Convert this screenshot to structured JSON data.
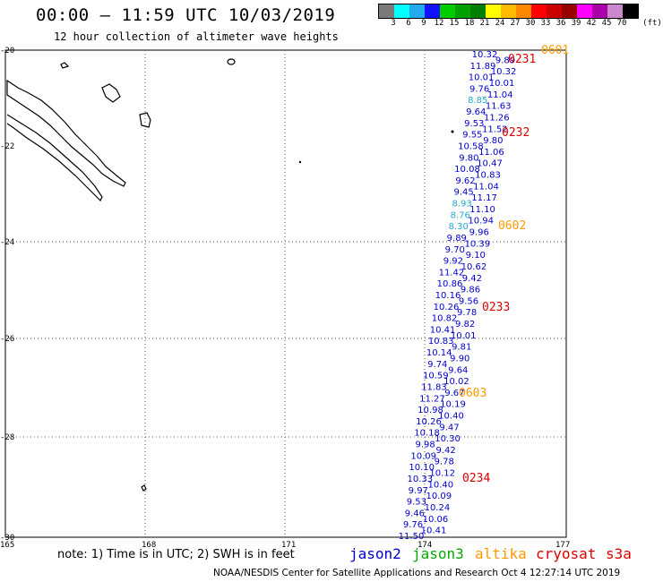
{
  "header": {
    "title": "00:00 – 11:59 UTC 10/03/2019",
    "subtitle": "12 hour collection of altimeter wave heights"
  },
  "legend": {
    "unit": "(ft)",
    "colors": [
      "#7a7a7a",
      "#00ffff",
      "#22aaee",
      "#1111ff",
      "#00cc00",
      "#00a000",
      "#008000",
      "#ffff00",
      "#ffbb00",
      "#ff8800",
      "#ff0000",
      "#cc0000",
      "#990000",
      "#ff00ff",
      "#aa00aa",
      "#cc88cc",
      "#000000"
    ],
    "labels": [
      "3",
      "6",
      "9",
      "12",
      "15",
      "18",
      "21",
      "24",
      "27",
      "30",
      "33",
      "36",
      "39",
      "42",
      "45",
      "70"
    ]
  },
  "map": {
    "latitude_labels": [
      "-20",
      "-22",
      "-24",
      "-26",
      "-28",
      "-30"
    ],
    "longitude_labels": [
      "165",
      "168",
      "171",
      "174",
      "177"
    ],
    "pass_labels": [
      {
        "text": "0601",
        "color": "#ff9900"
      },
      {
        "text": "0231",
        "color": "#dd0000"
      },
      {
        "text": "0232",
        "color": "#dd0000"
      },
      {
        "text": "0602",
        "color": "#ff9900"
      },
      {
        "text": "0233",
        "color": "#dd0000"
      },
      {
        "text": "0603",
        "color": "#ff9900"
      },
      {
        "text": "0234",
        "color": "#dd0000"
      }
    ],
    "wave_heights": [
      {
        "v": "10.32",
        "c": "blue"
      },
      {
        "v": "9.89",
        "c": "blue"
      },
      {
        "v": "11.89",
        "c": "blue"
      },
      {
        "v": "10.32",
        "c": "blue"
      },
      {
        "v": "10.01",
        "c": "blue"
      },
      {
        "v": "10.01",
        "c": "blue"
      },
      {
        "v": "9.76",
        "c": "blue"
      },
      {
        "v": "11.04",
        "c": "blue"
      },
      {
        "v": "8.85",
        "c": "cyan"
      },
      {
        "v": "11.63",
        "c": "blue"
      },
      {
        "v": "9.64",
        "c": "blue"
      },
      {
        "v": "11.26",
        "c": "blue"
      },
      {
        "v": "9.53",
        "c": "blue"
      },
      {
        "v": "11.52",
        "c": "blue"
      },
      {
        "v": "9.55",
        "c": "blue"
      },
      {
        "v": "9.80",
        "c": "blue"
      },
      {
        "v": "10.58",
        "c": "blue"
      },
      {
        "v": "11.06",
        "c": "blue"
      },
      {
        "v": "9.80",
        "c": "blue"
      },
      {
        "v": "10.47",
        "c": "blue"
      },
      {
        "v": "10.08",
        "c": "blue"
      },
      {
        "v": "10.83",
        "c": "blue"
      },
      {
        "v": "9.62",
        "c": "blue"
      },
      {
        "v": "11.04",
        "c": "blue"
      },
      {
        "v": "9.45",
        "c": "blue"
      },
      {
        "v": "11.17",
        "c": "blue"
      },
      {
        "v": "8.93",
        "c": "cyan"
      },
      {
        "v": "11.10",
        "c": "blue"
      },
      {
        "v": "8.76",
        "c": "cyan"
      },
      {
        "v": "10.94",
        "c": "blue"
      },
      {
        "v": "8.30",
        "c": "cyan"
      },
      {
        "v": "9.96",
        "c": "blue"
      },
      {
        "v": "9.89",
        "c": "blue"
      },
      {
        "v": "10.39",
        "c": "blue"
      },
      {
        "v": "9.70",
        "c": "blue"
      },
      {
        "v": "9.10",
        "c": "blue"
      },
      {
        "v": "9.92",
        "c": "blue"
      },
      {
        "v": "10.62",
        "c": "blue"
      },
      {
        "v": "11.42",
        "c": "blue"
      },
      {
        "v": "9.42",
        "c": "blue"
      },
      {
        "v": "10.86",
        "c": "blue"
      },
      {
        "v": "9.86",
        "c": "blue"
      },
      {
        "v": "10.16",
        "c": "blue"
      },
      {
        "v": "9.56",
        "c": "blue"
      },
      {
        "v": "10.26",
        "c": "blue"
      },
      {
        "v": "9.78",
        "c": "blue"
      },
      {
        "v": "10.82",
        "c": "blue"
      },
      {
        "v": "9.82",
        "c": "blue"
      },
      {
        "v": "10.41",
        "c": "blue"
      },
      {
        "v": "10.01",
        "c": "blue"
      },
      {
        "v": "10.83",
        "c": "blue"
      },
      {
        "v": "9.81",
        "c": "blue"
      },
      {
        "v": "10.14",
        "c": "blue"
      },
      {
        "v": "9.90",
        "c": "blue"
      },
      {
        "v": "9.74",
        "c": "blue"
      },
      {
        "v": "9.64",
        "c": "blue"
      },
      {
        "v": "10.59",
        "c": "blue"
      },
      {
        "v": "10.02",
        "c": "blue"
      },
      {
        "v": "11.83",
        "c": "blue"
      },
      {
        "v": "9.67",
        "c": "blue"
      },
      {
        "v": "11.27",
        "c": "blue"
      },
      {
        "v": "10.19",
        "c": "blue"
      },
      {
        "v": "10.98",
        "c": "blue"
      },
      {
        "v": "10.40",
        "c": "blue"
      },
      {
        "v": "10.26",
        "c": "blue"
      },
      {
        "v": "9.47",
        "c": "blue"
      },
      {
        "v": "10.18",
        "c": "blue"
      },
      {
        "v": "10.30",
        "c": "blue"
      },
      {
        "v": "9.98",
        "c": "blue"
      },
      {
        "v": "9.42",
        "c": "blue"
      },
      {
        "v": "10.09",
        "c": "blue"
      },
      {
        "v": "9.78",
        "c": "blue"
      },
      {
        "v": "10.10",
        "c": "blue"
      },
      {
        "v": "10.12",
        "c": "blue"
      },
      {
        "v": "10.33",
        "c": "blue"
      },
      {
        "v": "10.40",
        "c": "blue"
      },
      {
        "v": "9.97",
        "c": "blue"
      },
      {
        "v": "10.09",
        "c": "blue"
      },
      {
        "v": "9.53",
        "c": "blue"
      },
      {
        "v": "10.24",
        "c": "blue"
      },
      {
        "v": "9.46",
        "c": "blue"
      },
      {
        "v": "10.06",
        "c": "blue"
      },
      {
        "v": "9.76",
        "c": "blue"
      },
      {
        "v": "10.41",
        "c": "blue"
      },
      {
        "v": "11.50",
        "c": "blue"
      }
    ]
  },
  "note": "note: 1) Time is in UTC; 2) SWH is in feet",
  "satellites": [
    {
      "name": "jason2",
      "color": "#0000cc"
    },
    {
      "name": "jason3",
      "color": "#00aa00"
    },
    {
      "name": "altika",
      "color": "#ff9900"
    },
    {
      "name": "cryosat",
      "color": "#dd0000"
    },
    {
      "name": "s3a",
      "color": "#dd0000"
    }
  ],
  "footer": "NOAA/NESDIS Center for Satellite Applications and Research   Oct  4 12:27:14 UTC 2019"
}
